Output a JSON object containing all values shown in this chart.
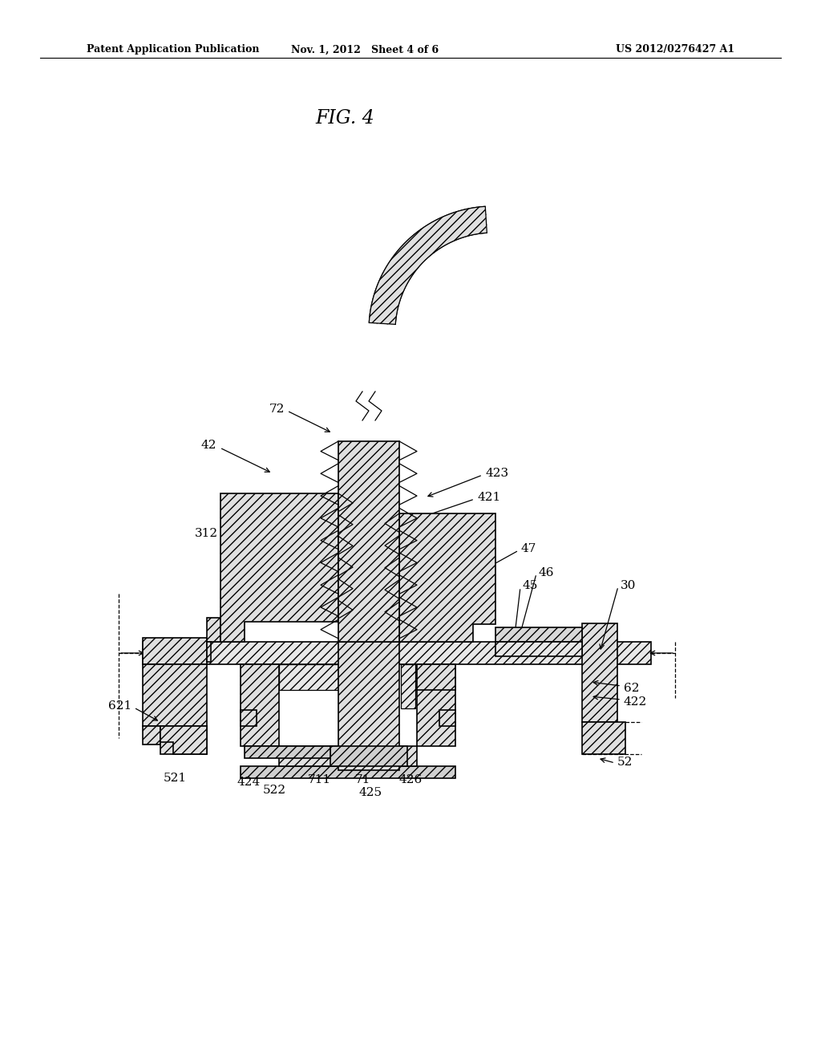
{
  "bg_color": "#ffffff",
  "lc": "#000000",
  "header_left": "Patent Application Publication",
  "header_center": "Nov. 1, 2012   Sheet 4 of 6",
  "header_right": "US 2012/0276427 A1",
  "title": "FIG. 4",
  "hatch": "///",
  "fig_w": 10.24,
  "fig_h": 13.2,
  "dpi": 100
}
